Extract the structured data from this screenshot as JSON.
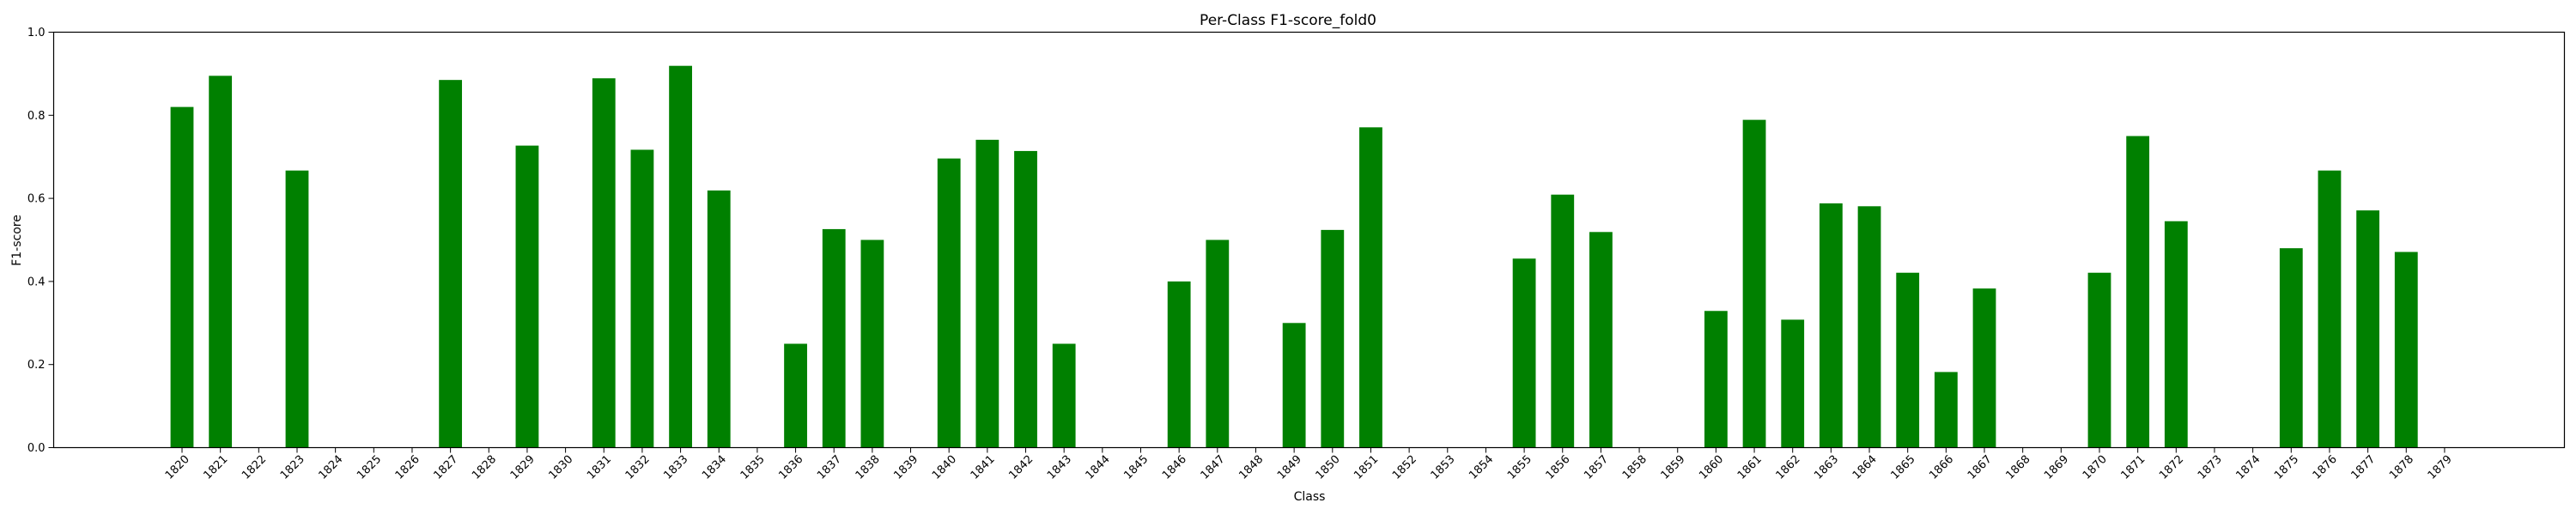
{
  "chart_data": {
    "type": "bar",
    "title": "Per-Class F1-score_fold0",
    "xlabel": "Class",
    "ylabel": "F1-score",
    "ylim": [
      0,
      1.0
    ],
    "yticks": [
      "0.0",
      "0.2",
      "0.4",
      "0.6",
      "0.8",
      "1.0"
    ],
    "grid": false,
    "bar_color": "#008000",
    "categories": [
      "1820",
      "1821",
      "1822",
      "1823",
      "1824",
      "1825",
      "1826",
      "1827",
      "1828",
      "1829",
      "1830",
      "1831",
      "1832",
      "1833",
      "1834",
      "1835",
      "1836",
      "1837",
      "1838",
      "1839",
      "1840",
      "1841",
      "1842",
      "1843",
      "1844",
      "1845",
      "1846",
      "1847",
      "1848",
      "1849",
      "1850",
      "1851",
      "1852",
      "1853",
      "1854",
      "1855",
      "1856",
      "1857",
      "1858",
      "1859",
      "1860",
      "1861",
      "1862",
      "1863",
      "1864",
      "1865",
      "1866",
      "1867",
      "1868",
      "1869",
      "1870",
      "1871",
      "1872",
      "1873",
      "1874",
      "1875",
      "1876",
      "1877",
      "1878",
      "1879"
    ],
    "values": [
      0.82,
      0.895,
      0,
      0.667,
      0,
      0,
      0,
      0.885,
      0,
      0.727,
      0,
      0.889,
      0.717,
      0.919,
      0.619,
      0,
      0.25,
      0.526,
      0.5,
      0,
      0.696,
      0.741,
      0.714,
      0.25,
      0,
      0,
      0.4,
      0.5,
      0,
      0.3,
      0.524,
      0.771,
      0,
      0,
      0,
      0.455,
      0.609,
      0.519,
      0,
      0,
      0.329,
      0.789,
      0.308,
      0.588,
      0.581,
      0.421,
      0.182,
      0.383,
      0,
      0,
      0.421,
      0.75,
      0.545,
      0,
      0,
      0.48,
      0.667,
      0.571,
      0.471,
      0
    ]
  }
}
